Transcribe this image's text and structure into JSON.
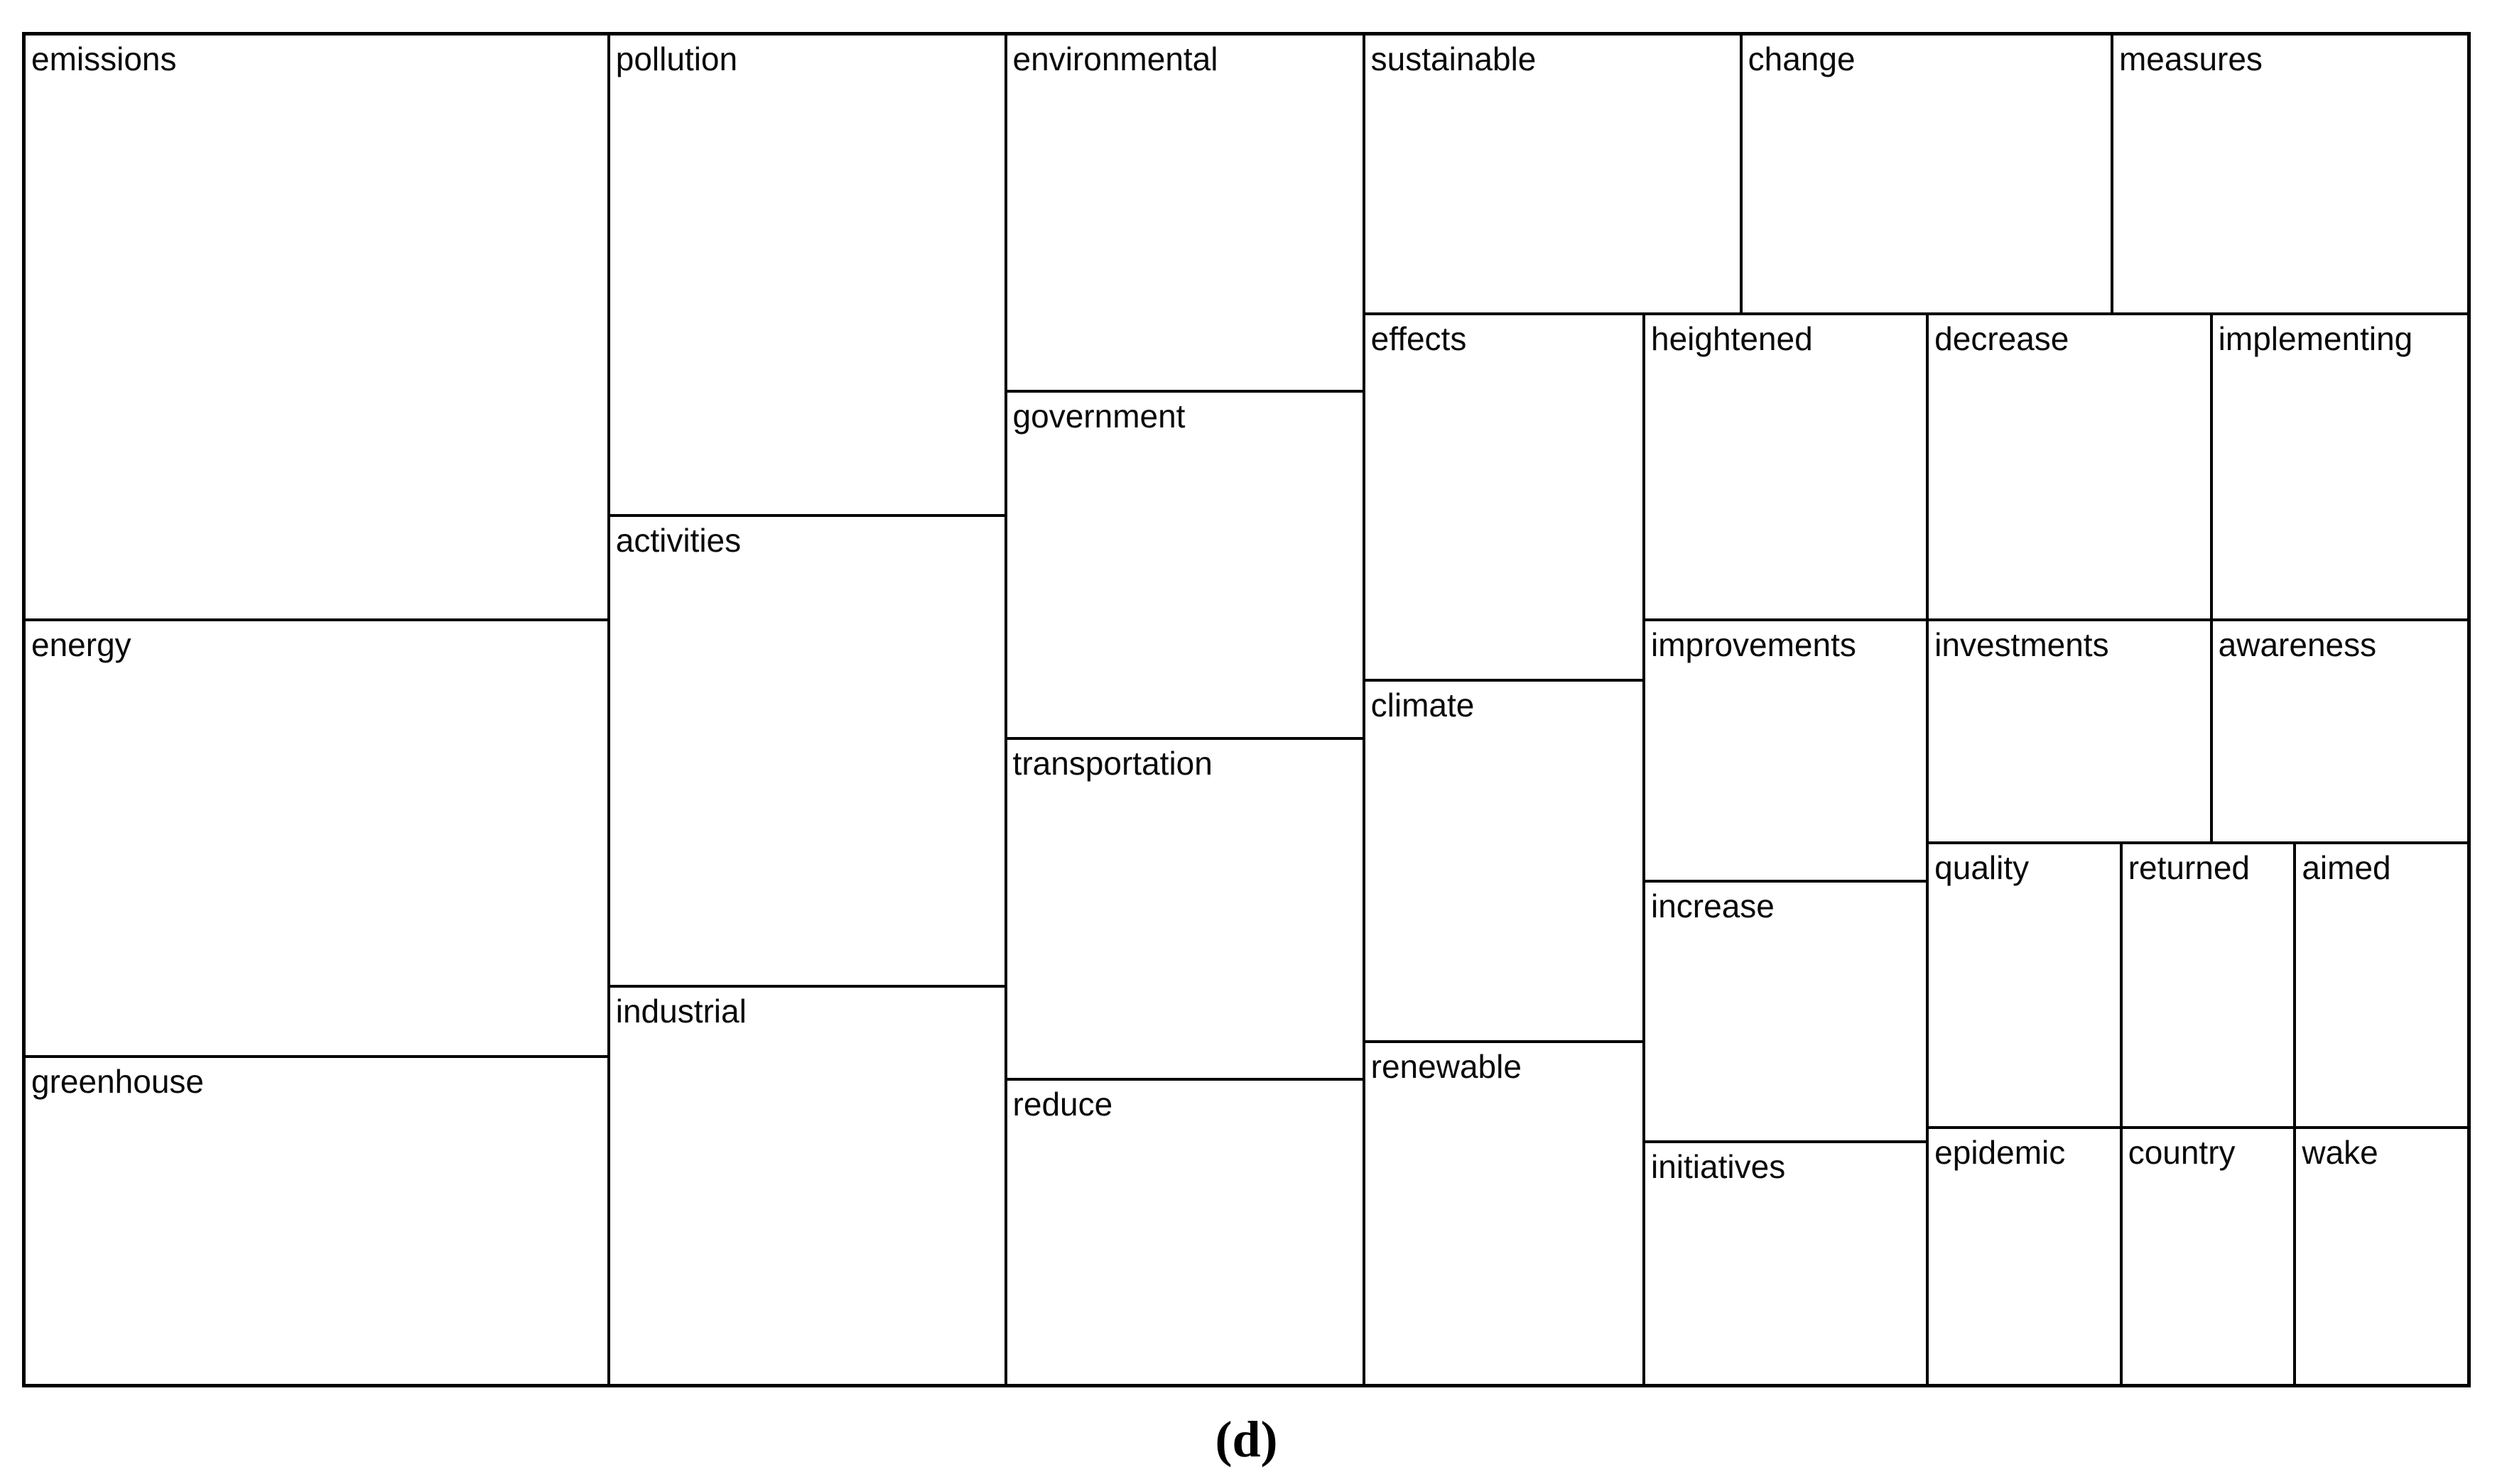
{
  "figure": {
    "caption": "(d)",
    "background": "#ffffff"
  },
  "chart_data": {
    "type": "treemap",
    "title": "",
    "border_color": "#000000",
    "tile_fill": "#ffffff",
    "label_color": "#0a0a0a",
    "legend": "none",
    "items": [
      {
        "label": "emissions",
        "x": 0,
        "y": 0,
        "w": 23.91,
        "h": 43.37,
        "area_pct": 10.4
      },
      {
        "label": "energy",
        "x": 0,
        "y": 43.37,
        "w": 23.91,
        "h": 32.32,
        "area_pct": 7.7
      },
      {
        "label": "greenhouse",
        "x": 0,
        "y": 75.69,
        "w": 23.91,
        "h": 24.31,
        "area_pct": 5.8
      },
      {
        "label": "pollution",
        "x": 23.91,
        "y": 0,
        "w": 16.24,
        "h": 35.62,
        "area_pct": 5.8
      },
      {
        "label": "activities",
        "x": 23.91,
        "y": 35.62,
        "w": 16.24,
        "h": 34.84,
        "area_pct": 5.7
      },
      {
        "label": "industrial",
        "x": 23.91,
        "y": 70.46,
        "w": 16.24,
        "h": 29.54,
        "area_pct": 4.8
      },
      {
        "label": "environmental",
        "x": 40.15,
        "y": 0,
        "w": 14.65,
        "h": 26.45,
        "area_pct": 3.9
      },
      {
        "label": "government",
        "x": 40.15,
        "y": 26.45,
        "w": 14.65,
        "h": 25.67,
        "area_pct": 3.8
      },
      {
        "label": "transportation",
        "x": 40.15,
        "y": 52.12,
        "w": 14.65,
        "h": 25.25,
        "area_pct": 3.7
      },
      {
        "label": "reduce",
        "x": 40.15,
        "y": 77.37,
        "w": 14.65,
        "h": 22.63,
        "area_pct": 3.3
      },
      {
        "label": "sustainable",
        "x": 54.8,
        "y": 0,
        "w": 15.43,
        "h": 20.69,
        "area_pct": 3.2
      },
      {
        "label": "change",
        "x": 70.23,
        "y": 0,
        "w": 15.18,
        "h": 20.69,
        "area_pct": 3.1
      },
      {
        "label": "measures",
        "x": 85.41,
        "y": 0,
        "w": 14.59,
        "h": 20.69,
        "area_pct": 3.0
      },
      {
        "label": "effects",
        "x": 54.8,
        "y": 20.69,
        "w": 11.46,
        "h": 27.14,
        "area_pct": 3.1
      },
      {
        "label": "climate",
        "x": 54.8,
        "y": 47.83,
        "w": 11.46,
        "h": 26.76,
        "area_pct": 3.1
      },
      {
        "label": "renewable",
        "x": 54.8,
        "y": 74.59,
        "w": 11.46,
        "h": 25.41,
        "area_pct": 2.9
      },
      {
        "label": "heightened",
        "x": 66.26,
        "y": 20.69,
        "w": 11.6,
        "h": 22.68,
        "area_pct": 2.6
      },
      {
        "label": "improvements",
        "x": 66.26,
        "y": 43.37,
        "w": 11.6,
        "h": 19.33,
        "area_pct": 2.2
      },
      {
        "label": "increase",
        "x": 66.26,
        "y": 62.7,
        "w": 11.6,
        "h": 19.28,
        "area_pct": 2.2
      },
      {
        "label": "initiatives",
        "x": 66.26,
        "y": 81.98,
        "w": 11.6,
        "h": 18.02,
        "area_pct": 2.1
      },
      {
        "label": "decrease",
        "x": 77.86,
        "y": 20.69,
        "w": 11.61,
        "h": 22.68,
        "area_pct": 2.6
      },
      {
        "label": "implementing",
        "x": 89.47,
        "y": 20.69,
        "w": 10.53,
        "h": 22.68,
        "area_pct": 2.4
      },
      {
        "label": "investments",
        "x": 77.86,
        "y": 43.37,
        "w": 11.61,
        "h": 16.5,
        "area_pct": 1.9
      },
      {
        "label": "awareness",
        "x": 89.47,
        "y": 43.37,
        "w": 10.53,
        "h": 16.5,
        "area_pct": 1.7
      },
      {
        "label": "quality",
        "x": 77.86,
        "y": 59.87,
        "w": 7.92,
        "h": 21.06,
        "area_pct": 1.7
      },
      {
        "label": "returned",
        "x": 85.78,
        "y": 59.87,
        "w": 7.11,
        "h": 21.06,
        "area_pct": 1.5
      },
      {
        "label": "aimed",
        "x": 92.89,
        "y": 59.87,
        "w": 7.11,
        "h": 21.06,
        "area_pct": 1.5
      },
      {
        "label": "epidemic",
        "x": 77.86,
        "y": 80.93,
        "w": 7.92,
        "h": 19.07,
        "area_pct": 1.5
      },
      {
        "label": "country",
        "x": 85.78,
        "y": 80.93,
        "w": 7.11,
        "h": 19.07,
        "area_pct": 1.4
      },
      {
        "label": "wake",
        "x": 92.89,
        "y": 80.93,
        "w": 7.11,
        "h": 19.07,
        "area_pct": 1.4
      }
    ]
  }
}
